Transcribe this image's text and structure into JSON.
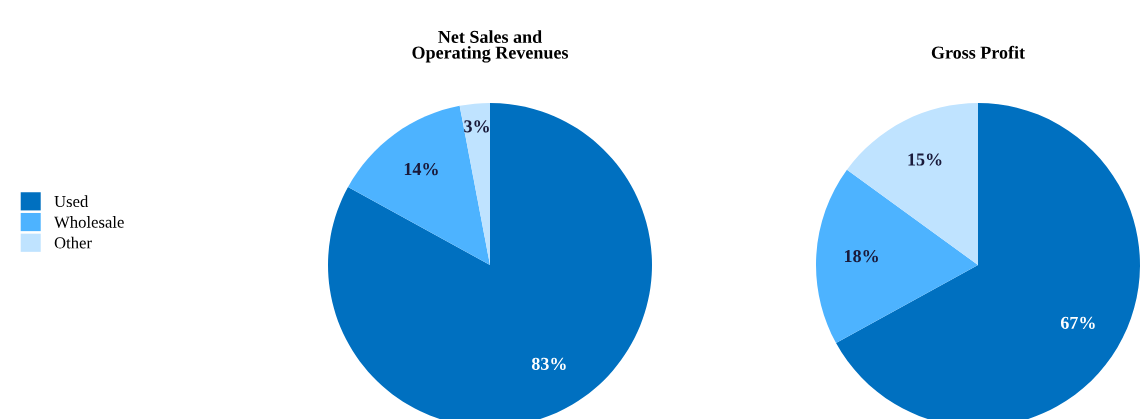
{
  "chart_data": [
    {
      "type": "pie",
      "title": "Net Sales and\nOperating Revenues",
      "categories": [
        "Used",
        "Wholesale",
        "Other"
      ],
      "values": [
        83,
        14,
        3
      ],
      "value_labels": [
        "83%",
        "14%",
        "3%"
      ],
      "colors": [
        "#0070c0",
        "#4db3ff",
        "#bfe3ff"
      ],
      "legend": "left"
    },
    {
      "type": "pie",
      "title": "Gross Profit",
      "categories": [
        null,
        null,
        null
      ],
      "values": [
        67,
        18,
        15
      ],
      "value_labels": [
        "67%",
        "18%",
        "15%"
      ],
      "colors": [
        "#0070c0",
        "#4db3ff",
        "#bfe3ff"
      ]
    }
  ]
}
